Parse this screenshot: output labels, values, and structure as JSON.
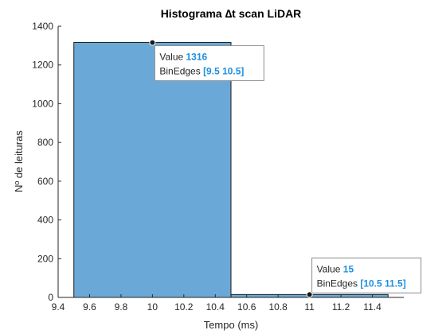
{
  "chart_data": {
    "type": "bar",
    "title": "Histograma ∆t scan LiDAR",
    "xlabel": "Tempo (ms)",
    "ylabel": "Nº de leituras",
    "xlim": [
      9.4,
      11.6
    ],
    "ylim": [
      0,
      1400
    ],
    "xticks": [
      "9.4",
      "9.6",
      "9.8",
      "10",
      "10.2",
      "10.4",
      "10.6",
      "10.8",
      "11",
      "11.2",
      "11.4"
    ],
    "yticks": [
      "0",
      "200",
      "400",
      "600",
      "800",
      "1000",
      "1200",
      "1400"
    ],
    "bins": [
      {
        "edges": [
          9.5,
          10.5
        ],
        "value": 1316
      },
      {
        "edges": [
          10.5,
          11.5
        ],
        "value": 15
      }
    ],
    "datatips": [
      {
        "value_label": "Value",
        "value": "1316",
        "edges_label": "BinEdges",
        "edges": "[9.5 10.5]",
        "x": 10,
        "y": 1316
      },
      {
        "value_label": "Value",
        "value": "15",
        "edges_label": "BinEdges",
        "edges": "[10.5 11.5]",
        "x": 11,
        "y": 15
      }
    ],
    "grid": false
  },
  "colors": {
    "bar_fill": "#6aa9d7",
    "bar_edge": "#1a1a1a",
    "axis": "#262626",
    "tip_value": "#1e8fe0",
    "tip_border": "#8c8c8c"
  }
}
